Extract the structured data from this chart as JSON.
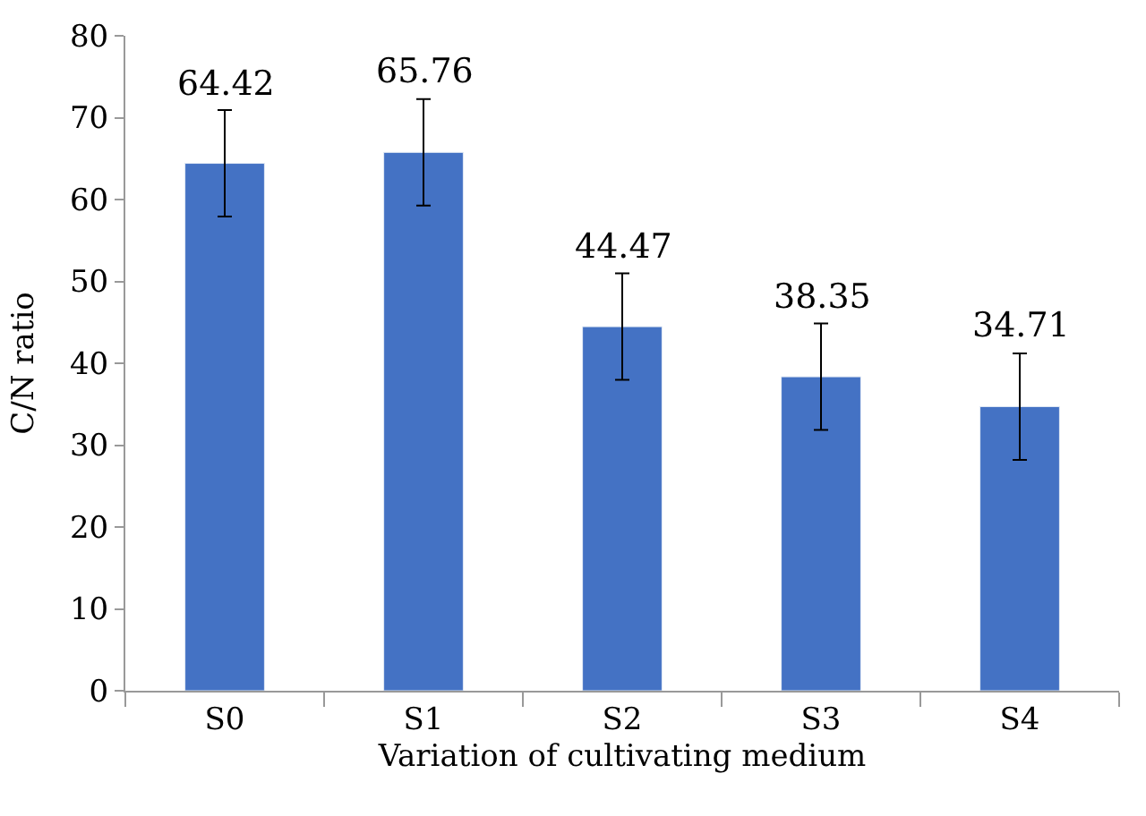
{
  "chart_data": {
    "type": "bar",
    "xlabel": "Variation of cultivating medium",
    "ylabel": "C/N ratio",
    "categories": [
      "S0",
      "S1",
      "S2",
      "S3",
      "S4"
    ],
    "values": [
      64.42,
      65.76,
      44.47,
      38.35,
      34.71
    ],
    "errors": [
      6.5,
      6.5,
      6.5,
      6.5,
      6.5
    ],
    "color": "#4472c4",
    "ylim": [
      0,
      80
    ],
    "yticks": [
      0,
      10,
      20,
      30,
      40,
      50,
      60,
      70,
      80
    ],
    "data_labels": true,
    "grid": false,
    "legend": false
  }
}
